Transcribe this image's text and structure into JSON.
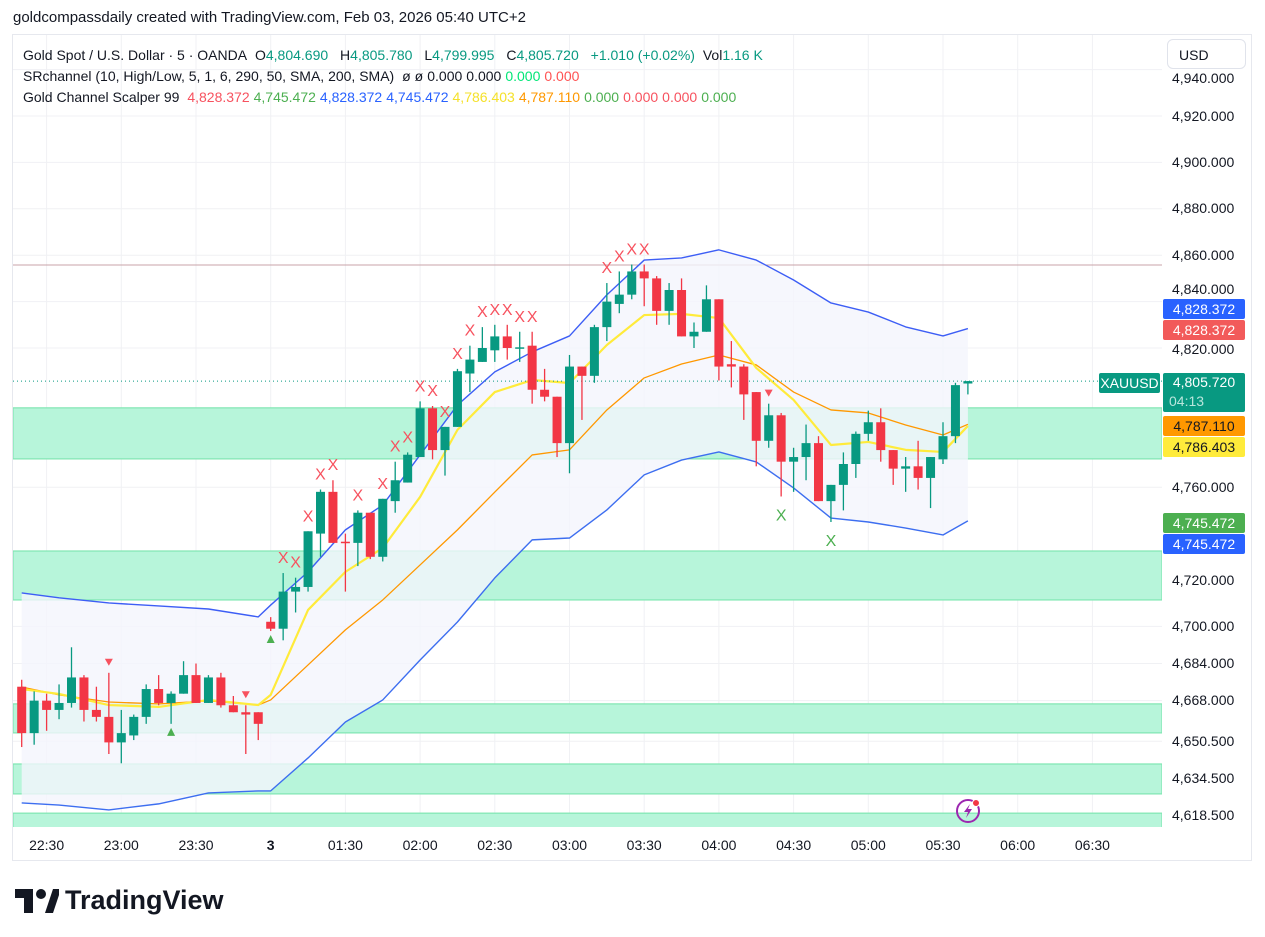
{
  "caption": "goldcompassdaily created with TradingView.com, Feb 03, 2026 05:40 UTC+2",
  "legend": {
    "symbol_line": {
      "title": "Gold Spot / U.S. Dollar · 5 · OANDA",
      "o_label": "O",
      "o": "4,804.690",
      "h_label": "H",
      "h": "4,805.780",
      "l_label": "L",
      "l": "4,799.995",
      "c_label": "C",
      "c": "4,805.720",
      "change": "+1.010 (+0.02%)",
      "vol_label": "Vol",
      "vol": "1.16 K",
      "value_color": "#089981"
    },
    "srchannel": {
      "title": "SRchannel (10, High/Low, 5, 1, 6, 290, 50, SMA, 200, SMA)",
      "values": [
        {
          "text": "ø",
          "color": "#131722"
        },
        {
          "text": "ø",
          "color": "#131722"
        },
        {
          "text": "0.000",
          "color": "#131722"
        },
        {
          "text": "0.000",
          "color": "#131722"
        },
        {
          "text": "0.000",
          "color": "#00e676"
        },
        {
          "text": "0.000",
          "color": "#ff5252"
        }
      ]
    },
    "scalper": {
      "title": "Gold Channel Scalper 99",
      "values": [
        {
          "text": "4,828.372",
          "color": "#f7525f"
        },
        {
          "text": "4,745.472",
          "color": "#4caf50"
        },
        {
          "text": "4,828.372",
          "color": "#2962ff"
        },
        {
          "text": "4,745.472",
          "color": "#2962ff"
        },
        {
          "text": "4,786.403",
          "color": "#f5e12a"
        },
        {
          "text": "4,787.110",
          "color": "#ff9800"
        },
        {
          "text": "0.000",
          "color": "#4caf50"
        },
        {
          "text": "0.000",
          "color": "#f7525f"
        },
        {
          "text": "0.000",
          "color": "#f7525f"
        },
        {
          "text": "0.000",
          "color": "#4caf50"
        }
      ]
    }
  },
  "currency": "USD",
  "price_tags": {
    "symbol": "XAUUSD",
    "last": "4,805.720",
    "countdown": "04:13",
    "upper_red": "4,828.372",
    "upper_blue": "4,828.372",
    "orange": "4,787.110",
    "yellow": "4,786.403",
    "lower_green": "4,745.472",
    "lower_blue": "4,745.472"
  },
  "brand": "TradingView",
  "chart_data": {
    "type": "candlestick",
    "symbol": "XAUUSD",
    "interval": "5",
    "colors": {
      "up": "#089981",
      "down": "#f23645",
      "upper_band": "#3d5ef5",
      "lower_band": "#3d6ef0",
      "band_fill": "#f4f5fc",
      "yellow": "#ffeb3b",
      "orange": "#ff9800",
      "zone_fill": "#b7f5da",
      "zone_edge": "#7fe6b2",
      "resistance_line": "#c9a3a8",
      "last_price": "#089981"
    },
    "y_ticks": [
      "4,940.000",
      "4,920.000",
      "4,900.000",
      "4,880.000",
      "4,860.000",
      "4,840.000",
      "4,820.000",
      "4,760.000",
      "4,720.000",
      "4,700.000",
      "4,684.000",
      "4,668.000",
      "4,650.500",
      "4,634.500",
      "4,618.500"
    ],
    "x_ticks": [
      {
        "label": "22:30",
        "t": "22:30"
      },
      {
        "label": "23:00",
        "t": "23:00"
      },
      {
        "label": "23:30",
        "t": "23:30"
      },
      {
        "label": "3",
        "t": "01:00"
      },
      {
        "label": "01:30",
        "t": "01:30"
      },
      {
        "label": "02:00",
        "t": "02:00"
      },
      {
        "label": "02:30",
        "t": "02:30"
      },
      {
        "label": "03:00",
        "t": "03:00"
      },
      {
        "label": "03:30",
        "t": "03:30"
      },
      {
        "label": "04:00",
        "t": "04:00"
      },
      {
        "label": "04:30",
        "t": "04:30"
      },
      {
        "label": "05:00",
        "t": "05:00"
      },
      {
        "label": "05:30",
        "t": "05:30"
      },
      {
        "label": "06:00",
        "t": "06:00"
      },
      {
        "label": "06:30",
        "t": "06:30"
      }
    ],
    "last_price": 4805.72,
    "resistance_line": 4855.8,
    "sr_zones": [
      [
        4772.2,
        4794.2
      ],
      [
        4711.4,
        4732.5
      ],
      [
        4654.1,
        4666.6
      ],
      [
        4627.8,
        4640.7
      ],
      [
        4600,
        4619.5
      ]
    ],
    "candles_columns": [
      "time",
      "open",
      "high",
      "low",
      "close"
    ],
    "candles": [
      [
        "22:20",
        4674,
        4677,
        4648,
        4654
      ],
      [
        "22:25",
        4654,
        4672,
        4649,
        4668
      ],
      [
        "22:30",
        4668,
        4671,
        4655,
        4664
      ],
      [
        "22:35",
        4664,
        4675,
        4660,
        4667
      ],
      [
        "22:40",
        4667,
        4691,
        4665,
        4678
      ],
      [
        "22:45",
        4678,
        4679,
        4659,
        4664
      ],
      [
        "22:50",
        4664,
        4674,
        4659,
        4661
      ],
      [
        "22:55",
        4661,
        4680,
        4645,
        4650
      ],
      [
        "23:00",
        4650,
        4664,
        4641,
        4654
      ],
      [
        "23:05",
        4653,
        4662,
        4651,
        4661
      ],
      [
        "23:10",
        4661,
        4675,
        4658,
        4673
      ],
      [
        "23:15",
        4673,
        4679,
        4666,
        4667
      ],
      [
        "23:20",
        4667,
        4672,
        4658,
        4671
      ],
      [
        "23:25",
        4671,
        4685,
        4671,
        4679
      ],
      [
        "23:30",
        4679,
        4684,
        4667,
        4667
      ],
      [
        "23:35",
        4667,
        4679,
        4667,
        4678
      ],
      [
        "23:40",
        4678,
        4680,
        4665,
        4666
      ],
      [
        "23:45",
        4666,
        4670,
        4663,
        4663
      ],
      [
        "23:50",
        4663,
        4666,
        4645,
        4662
      ],
      [
        "23:55",
        4663,
        4663,
        4651,
        4658
      ],
      [
        "01:00",
        4702,
        4704,
        4698,
        4699
      ],
      [
        "01:05",
        4699,
        4723,
        4694,
        4715
      ],
      [
        "01:10",
        4715,
        4721,
        4706,
        4717
      ],
      [
        "01:15",
        4717,
        4741,
        4715,
        4741
      ],
      [
        "01:20",
        4740,
        4759,
        4730,
        4758
      ],
      [
        "01:25",
        4758,
        4763,
        4736,
        4736
      ],
      [
        "01:30",
        4736.5,
        4740,
        4715,
        4736
      ],
      [
        "01:35",
        4736,
        4750,
        4726,
        4749
      ],
      [
        "01:40",
        4749,
        4749,
        4729,
        4730
      ],
      [
        "01:45",
        4730,
        4755,
        4728,
        4755
      ],
      [
        "01:50",
        4754,
        4771,
        4749,
        4763
      ],
      [
        "01:55",
        4762,
        4775,
        4762,
        4774
      ],
      [
        "02:00",
        4773,
        4797,
        4773,
        4794
      ],
      [
        "02:05",
        4794,
        4795,
        4772,
        4776
      ],
      [
        "02:10",
        4776,
        4786,
        4765,
        4786
      ],
      [
        "02:15",
        4786,
        4811,
        4786,
        4810
      ],
      [
        "02:20",
        4809,
        4821,
        4801,
        4815
      ],
      [
        "02:25",
        4814,
        4829,
        4814,
        4820
      ],
      [
        "02:30",
        4819,
        4830,
        4814,
        4825
      ],
      [
        "02:35",
        4825,
        4830,
        4815,
        4820
      ],
      [
        "02:40",
        4820,
        4827,
        4814,
        4820.3
      ],
      [
        "02:45",
        4821,
        4827,
        4796,
        4802
      ],
      [
        "02:50",
        4802,
        4811,
        4797,
        4799
      ],
      [
        "02:55",
        4799,
        4799,
        4773,
        4779
      ],
      [
        "03:00",
        4779,
        4817,
        4766,
        4812
      ],
      [
        "03:05",
        4812,
        4812,
        4789,
        4808
      ],
      [
        "03:10",
        4808,
        4830,
        4805,
        4829
      ],
      [
        "03:15",
        4829,
        4848,
        4823,
        4840
      ],
      [
        "03:20",
        4839,
        4853,
        4835,
        4843
      ],
      [
        "03:25",
        4843,
        4856,
        4841,
        4853
      ],
      [
        "03:30",
        4853,
        4856,
        4838,
        4850
      ],
      [
        "03:35",
        4850,
        4851,
        4830,
        4836
      ],
      [
        "03:40",
        4836,
        4848,
        4830,
        4845
      ],
      [
        "03:45",
        4845,
        4850,
        4825,
        4825
      ],
      [
        "03:50",
        4825,
        4831,
        4820,
        4827
      ],
      [
        "03:55",
        4827,
        4847,
        4827,
        4841
      ],
      [
        "04:00",
        4841,
        4841,
        4806,
        4812
      ],
      [
        "04:05",
        4813,
        4823,
        4803,
        4812
      ],
      [
        "04:10",
        4812,
        4813,
        4789,
        4800
      ],
      [
        "04:15",
        4801,
        4801,
        4769,
        4780
      ],
      [
        "04:20",
        4780,
        4796,
        4777,
        4791
      ],
      [
        "04:25",
        4791,
        4792,
        4756,
        4771
      ],
      [
        "04:30",
        4771,
        4777,
        4758,
        4773
      ],
      [
        "04:35",
        4773,
        4787,
        4763,
        4779
      ],
      [
        "04:40",
        4779,
        4782,
        4754,
        4754
      ],
      [
        "04:45",
        4754,
        4761,
        4745,
        4761
      ],
      [
        "04:50",
        4761,
        4775,
        4750,
        4770
      ],
      [
        "04:55",
        4770,
        4784,
        4764,
        4783
      ],
      [
        "05:00",
        4783,
        4793,
        4780,
        4788
      ],
      [
        "05:05",
        4788,
        4794,
        4771,
        4776
      ],
      [
        "05:10",
        4776,
        4776,
        4761,
        4768
      ],
      [
        "05:15",
        4768,
        4773,
        4758,
        4769
      ],
      [
        "05:20",
        4769,
        4780,
        4759,
        4764
      ],
      [
        "05:25",
        4764,
        4773,
        4751,
        4773
      ],
      [
        "05:30",
        4772,
        4788,
        4770,
        4782
      ],
      [
        "05:35",
        4782,
        4805,
        4779,
        4804
      ],
      [
        "05:40",
        4804.69,
        4805.78,
        4799.995,
        4805.72
      ]
    ],
    "lines_times": [
      "22:20",
      "22:35",
      "22:55",
      "23:15",
      "23:35",
      "23:55",
      "01:00",
      "01:15",
      "01:30",
      "01:45",
      "02:00",
      "02:15",
      "02:30",
      "02:45",
      "03:00",
      "03:15",
      "03:30",
      "03:45",
      "04:00",
      "04:15",
      "04:30",
      "04:45",
      "05:00",
      "05:15",
      "05:30",
      "05:40"
    ],
    "upper_band": [
      4714.4,
      4712.3,
      4710.1,
      4708.8,
      4707.5,
      4704.1,
      4709.2,
      4723.5,
      4741.6,
      4752.3,
      4773.9,
      4795.4,
      4809.7,
      4818.3,
      4825.2,
      4842.9,
      4857.9,
      4858.8,
      4862.3,
      4857.9,
      4849.3,
      4839.4,
      4835.5,
      4829.1,
      4825.2,
      4828.372
    ],
    "lower_band": [
      4623.9,
      4623.0,
      4620.9,
      4623.5,
      4628.2,
      4629.1,
      4629.1,
      4643.3,
      4658.8,
      4668.3,
      4685.5,
      4701.9,
      4720.9,
      4737.3,
      4738.1,
      4750.2,
      4765.3,
      4771.7,
      4775.2,
      4770.9,
      4759.7,
      4746.7,
      4745.0,
      4742.4,
      4739.4,
      4745.472
    ],
    "yellow_line": [
      4673.0,
      4670.9,
      4666.1,
      4665.3,
      4668.3,
      4666.1,
      4670.5,
      4707.1,
      4723.5,
      4733.8,
      4755.8,
      4784.7,
      4801.0,
      4806.2,
      4804.9,
      4821.3,
      4834.2,
      4834.7,
      4832.9,
      4811.4,
      4797.6,
      4778.2,
      4779.5,
      4776.1,
      4775.2,
      4786.403
    ],
    "orange_line": [
      4673.9,
      4670.5,
      4667.4,
      4666.6,
      4667.9,
      4666.1,
      4668.3,
      4683.4,
      4698.5,
      4711.4,
      4726.5,
      4741.6,
      4757.9,
      4773.9,
      4776.1,
      4793.3,
      4807.1,
      4813.1,
      4817.0,
      4812.7,
      4801.0,
      4793.3,
      4792.0,
      4786.8,
      4782.5,
      4787.11
    ],
    "marker_glyph": "X",
    "markers": {
      "sell_x": [
        "01:05",
        "01:10",
        "01:15",
        "01:20",
        "01:25",
        "01:35",
        "01:45",
        "01:50",
        "01:55",
        "02:00",
        "02:05",
        "02:10",
        "02:15",
        "02:20",
        "02:25",
        "02:30",
        "02:35",
        "02:40",
        "02:45",
        "03:15",
        "03:20",
        "03:25",
        "03:30"
      ],
      "buy_x": [
        "04:25",
        "04:45"
      ],
      "up_triangle": [
        "23:20",
        "01:00"
      ],
      "down_triangle": [
        "22:55",
        "23:50",
        "04:20"
      ]
    }
  }
}
